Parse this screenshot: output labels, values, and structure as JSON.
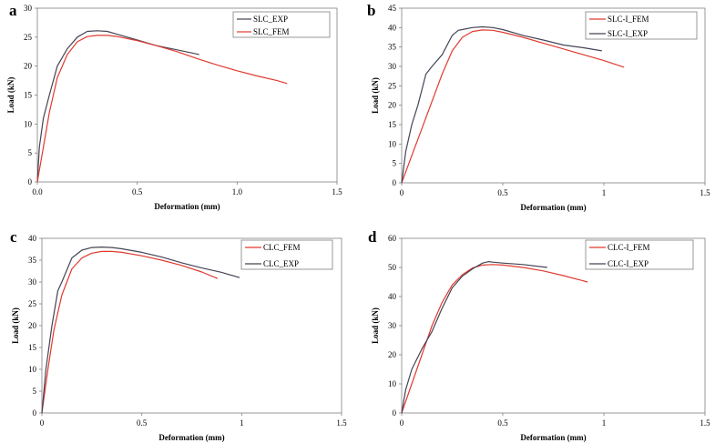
{
  "chart_data": [
    {
      "type": "line",
      "panel": "a",
      "xlabel": "Deformation (mm)",
      "ylabel": "Load (kN)",
      "xlim": [
        0,
        1.5
      ],
      "ylim": [
        0,
        30
      ],
      "xticks": [
        "0.0",
        "0.5",
        "1.0",
        "1.5"
      ],
      "yticks": [
        "0",
        "5",
        "10",
        "15",
        "20",
        "25",
        "30"
      ],
      "series": [
        {
          "name": "SLC_EXP",
          "color": "#444455",
          "x": [
            0,
            0.01,
            0.03,
            0.06,
            0.1,
            0.15,
            0.2,
            0.25,
            0.3,
            0.35,
            0.4,
            0.5,
            0.6,
            0.7,
            0.81
          ],
          "y": [
            0,
            6,
            11,
            15,
            20,
            23,
            25,
            26,
            26.1,
            26,
            25.5,
            24.5,
            23.5,
            22.8,
            22
          ]
        },
        {
          "name": "SLC_FEM",
          "color": "#e03a2f",
          "x": [
            0,
            0.03,
            0.06,
            0.1,
            0.15,
            0.2,
            0.25,
            0.3,
            0.35,
            0.4,
            0.5,
            0.6,
            0.7,
            0.8,
            0.9,
            1.0,
            1.1,
            1.2,
            1.25
          ],
          "y": [
            0,
            6,
            12,
            18,
            22,
            24.2,
            25.1,
            25.3,
            25.3,
            25.1,
            24.4,
            23.5,
            22.5,
            21.3,
            20.2,
            19.2,
            18.3,
            17.5,
            17
          ]
        }
      ]
    },
    {
      "type": "line",
      "panel": "b",
      "xlabel": "Deformation (mm)",
      "ylabel": "Load (kN)",
      "xlim": [
        0,
        1.5
      ],
      "ylim": [
        0,
        45
      ],
      "xticks": [
        "0",
        "0.5",
        "1",
        "1.5"
      ],
      "yticks": [
        "0",
        "5",
        "10",
        "15",
        "20",
        "25",
        "30",
        "35",
        "40",
        "45"
      ],
      "series": [
        {
          "name": "SLC-I_FEM",
          "color": "#e03a2f",
          "x": [
            0,
            0.05,
            0.1,
            0.15,
            0.2,
            0.25,
            0.3,
            0.35,
            0.4,
            0.45,
            0.5,
            0.6,
            0.7,
            0.8,
            0.9,
            1.0,
            1.1
          ],
          "y": [
            0,
            7,
            14,
            21,
            28,
            34,
            37.5,
            39,
            39.4,
            39.3,
            38.8,
            37.5,
            36,
            34.5,
            33,
            31.5,
            29.8
          ]
        },
        {
          "name": "SLC-I_EXP",
          "color": "#444455",
          "x": [
            0,
            0.02,
            0.05,
            0.08,
            0.1,
            0.12,
            0.15,
            0.2,
            0.25,
            0.28,
            0.3,
            0.35,
            0.4,
            0.45,
            0.5,
            0.6,
            0.7,
            0.8,
            0.9,
            0.99
          ],
          "y": [
            0,
            8,
            15,
            20,
            24,
            28,
            30,
            33,
            38,
            39.3,
            39.5,
            40,
            40.2,
            40,
            39.5,
            38,
            36.8,
            35.5,
            34.8,
            34
          ]
        }
      ]
    },
    {
      "type": "line",
      "panel": "c",
      "xlabel": "Deformation (mm)",
      "ylabel": "Load (kN)",
      "xlim": [
        0,
        1.5
      ],
      "ylim": [
        0,
        40
      ],
      "xticks": [
        "0",
        "0.5",
        "1",
        "1.5"
      ],
      "yticks": [
        "0",
        "5",
        "10",
        "15",
        "20",
        "25",
        "30",
        "35",
        "40"
      ],
      "series": [
        {
          "name": "CLC_FEM",
          "color": "#e03a2f",
          "x": [
            0,
            0.03,
            0.06,
            0.1,
            0.15,
            0.2,
            0.25,
            0.3,
            0.35,
            0.4,
            0.5,
            0.6,
            0.7,
            0.8,
            0.88
          ],
          "y": [
            0,
            10,
            19,
            27,
            33,
            35.5,
            36.6,
            37,
            37,
            36.8,
            36,
            35,
            33.8,
            32.3,
            30.8
          ]
        },
        {
          "name": "CLC_EXP",
          "color": "#444455",
          "x": [
            0,
            0.02,
            0.05,
            0.08,
            0.1,
            0.15,
            0.2,
            0.25,
            0.3,
            0.35,
            0.4,
            0.5,
            0.6,
            0.7,
            0.8,
            0.9,
            0.99
          ],
          "y": [
            0,
            10,
            20,
            28,
            30,
            35.5,
            37.3,
            37.9,
            38,
            37.9,
            37.6,
            36.8,
            35.7,
            34.4,
            33.2,
            32.2,
            31
          ]
        }
      ]
    },
    {
      "type": "line",
      "panel": "d",
      "xlabel": "Deformation (mm)",
      "ylabel": "Load (kN)",
      "xlim": [
        0,
        1.5
      ],
      "ylim": [
        0,
        60
      ],
      "xticks": [
        "0",
        "0.5",
        "1",
        "1.5"
      ],
      "yticks": [
        "0",
        "10",
        "20",
        "30",
        "40",
        "50",
        "60"
      ],
      "series": [
        {
          "name": "CLC-I_FEM",
          "color": "#e03a2f",
          "x": [
            0,
            0.05,
            0.1,
            0.15,
            0.2,
            0.25,
            0.3,
            0.35,
            0.4,
            0.45,
            0.5,
            0.6,
            0.7,
            0.8,
            0.92
          ],
          "y": [
            0,
            10,
            20,
            30,
            38,
            44,
            47.5,
            49.8,
            50.8,
            51,
            50.8,
            50,
            48.8,
            47.2,
            45
          ]
        },
        {
          "name": "CLC-I_EXP",
          "color": "#444455",
          "x": [
            0,
            0.02,
            0.05,
            0.1,
            0.15,
            0.2,
            0.25,
            0.3,
            0.35,
            0.4,
            0.43,
            0.45,
            0.5,
            0.6,
            0.72
          ],
          "y": [
            0,
            8,
            15,
            22,
            28,
            36,
            43,
            47,
            49.5,
            51.5,
            52,
            51.8,
            51.5,
            51,
            50
          ]
        }
      ]
    }
  ]
}
